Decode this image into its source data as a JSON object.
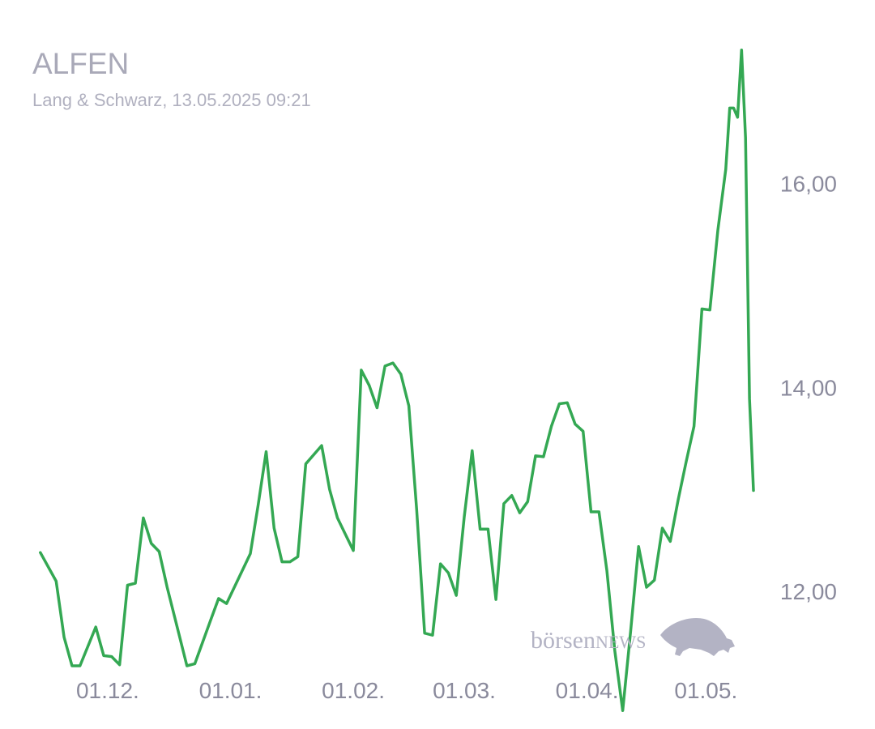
{
  "header": {
    "title": "ALFEN",
    "subtitle": "Lang & Schwarz, 13.05.2025 09:21"
  },
  "watermark": {
    "brand_prefix": "börsen",
    "brand_suffix": "NEWS",
    "icon": "bull-icon"
  },
  "colors": {
    "line": "#34a853",
    "axis_text": "#8a8a9c",
    "title": "#a9a9b8"
  },
  "chart_data": {
    "type": "line",
    "title": "ALFEN",
    "subtitle": "Lang & Schwarz, 13.05.2025 09:21",
    "xlabel": "",
    "ylabel": "",
    "ylim": [
      10.65,
      17.8
    ],
    "xlim": [
      "2024-11-12",
      "2025-05-13"
    ],
    "grid": false,
    "y_ticks": [
      12.0,
      14.0,
      16.0
    ],
    "y_tick_labels": [
      "12,00",
      "14,00",
      "16,00"
    ],
    "x_ticks": [
      "2024-12-01",
      "2025-01-01",
      "2025-02-01",
      "2025-03-01",
      "2025-04-01",
      "2025-05-01"
    ],
    "x_tick_labels": [
      "01.12.",
      "01.01.",
      "01.02.",
      "01.03.",
      "01.04.",
      "01.05."
    ],
    "series": [
      {
        "color": "#34a853",
        "points": [
          [
            "2024-11-14",
            12.38
          ],
          [
            "2024-11-18",
            12.1
          ],
          [
            "2024-11-20",
            11.55
          ],
          [
            "2024-11-22",
            11.27
          ],
          [
            "2024-11-24",
            11.27
          ],
          [
            "2024-11-28",
            11.65
          ],
          [
            "2024-11-30",
            11.37
          ],
          [
            "2024-12-02",
            11.36
          ],
          [
            "2024-12-04",
            11.28
          ],
          [
            "2024-12-06",
            12.06
          ],
          [
            "2024-12-08",
            12.08
          ],
          [
            "2024-12-10",
            12.72
          ],
          [
            "2024-12-12",
            12.47
          ],
          [
            "2024-12-14",
            12.39
          ],
          [
            "2024-12-16",
            12.04
          ],
          [
            "2024-12-19",
            11.58
          ],
          [
            "2024-12-21",
            11.27
          ],
          [
            "2024-12-23",
            11.29
          ],
          [
            "2024-12-27",
            11.72
          ],
          [
            "2024-12-29",
            11.93
          ],
          [
            "2024-12-31",
            11.88
          ],
          [
            "2025-01-06",
            12.37
          ],
          [
            "2025-01-08",
            12.85
          ],
          [
            "2025-01-10",
            13.37
          ],
          [
            "2025-01-12",
            12.62
          ],
          [
            "2025-01-14",
            12.29
          ],
          [
            "2025-01-16",
            12.29
          ],
          [
            "2025-01-18",
            12.34
          ],
          [
            "2025-01-20",
            13.25
          ],
          [
            "2025-01-24",
            13.43
          ],
          [
            "2025-01-26",
            13.0
          ],
          [
            "2025-01-28",
            12.72
          ],
          [
            "2025-01-30",
            12.56
          ],
          [
            "2025-02-01",
            12.4
          ],
          [
            "2025-02-03",
            14.17
          ],
          [
            "2025-02-05",
            14.02
          ],
          [
            "2025-02-07",
            13.8
          ],
          [
            "2025-02-09",
            14.21
          ],
          [
            "2025-02-11",
            14.24
          ],
          [
            "2025-02-13",
            14.13
          ],
          [
            "2025-02-15",
            13.82
          ],
          [
            "2025-02-17",
            12.8
          ],
          [
            "2025-02-19",
            11.59
          ],
          [
            "2025-02-21",
            11.57
          ],
          [
            "2025-02-23",
            12.27
          ],
          [
            "2025-02-25",
            12.18
          ],
          [
            "2025-02-27",
            11.96
          ],
          [
            "2025-03-01",
            12.73
          ],
          [
            "2025-03-03",
            13.38
          ],
          [
            "2025-03-05",
            12.61
          ],
          [
            "2025-03-07",
            12.61
          ],
          [
            "2025-03-09",
            11.92
          ],
          [
            "2025-03-11",
            12.86
          ],
          [
            "2025-03-13",
            12.94
          ],
          [
            "2025-03-15",
            12.77
          ],
          [
            "2025-03-17",
            12.88
          ],
          [
            "2025-03-19",
            13.33
          ],
          [
            "2025-03-21",
            13.32
          ],
          [
            "2025-03-23",
            13.62
          ],
          [
            "2025-03-25",
            13.84
          ],
          [
            "2025-03-27",
            13.85
          ],
          [
            "2025-03-29",
            13.64
          ],
          [
            "2025-03-31",
            13.57
          ],
          [
            "2025-04-02",
            12.78
          ],
          [
            "2025-04-04",
            12.78
          ],
          [
            "2025-04-06",
            12.2
          ],
          [
            "2025-04-08",
            11.42
          ],
          [
            "2025-04-10",
            10.83
          ],
          [
            "2025-04-12",
            11.61
          ],
          [
            "2025-04-14",
            12.44
          ],
          [
            "2025-04-16",
            12.04
          ],
          [
            "2025-04-18",
            12.11
          ],
          [
            "2025-04-20",
            12.62
          ],
          [
            "2025-04-22",
            12.49
          ],
          [
            "2025-04-24",
            12.9
          ],
          [
            "2025-04-26",
            13.27
          ],
          [
            "2025-04-28",
            13.62
          ],
          [
            "2025-04-30",
            14.77
          ],
          [
            "2025-05-02",
            14.76
          ],
          [
            "2025-05-04",
            15.54
          ],
          [
            "2025-05-06",
            16.14
          ],
          [
            "2025-05-07",
            16.74
          ],
          [
            "2025-05-08",
            16.74
          ],
          [
            "2025-05-09",
            16.65
          ],
          [
            "2025-05-10",
            17.31
          ],
          [
            "2025-05-11",
            16.45
          ],
          [
            "2025-05-12",
            13.89
          ],
          [
            "2025-05-13",
            12.99
          ]
        ]
      }
    ]
  }
}
